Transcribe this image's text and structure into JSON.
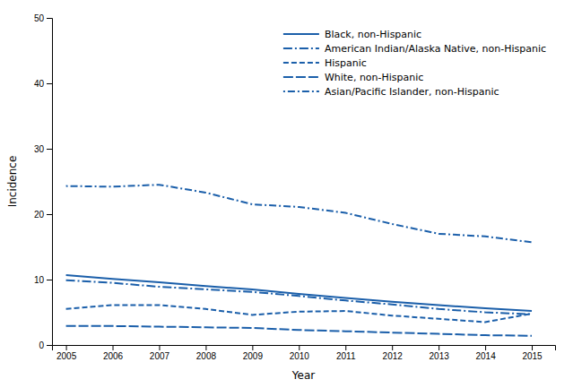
{
  "chart_data": {
    "type": "line",
    "xlabel": "Year",
    "ylabel": "Incidence",
    "x": [
      2005,
      2006,
      2007,
      2008,
      2009,
      2010,
      2011,
      2012,
      2013,
      2014,
      2015
    ],
    "xlim": [
      2004.7,
      2015.5
    ],
    "xticks": [
      2005,
      2006,
      2007,
      2008,
      2009,
      2010,
      2011,
      2012,
      2013,
      2014,
      2015
    ],
    "ylim": [
      0,
      50
    ],
    "yticks": [
      0,
      10,
      20,
      30,
      40,
      50
    ],
    "grid": false,
    "legend": "upper right",
    "series": [
      {
        "name": "Black, non-Hispanic",
        "color": "#1b5faa",
        "line_style": "solid",
        "values": [
          10.7,
          10.1,
          9.6,
          9.0,
          8.5,
          7.8,
          7.2,
          6.6,
          6.1,
          5.6,
          5.2
        ]
      },
      {
        "name": "American Indian/Alaska Native, non-Hispanic",
        "color": "#1b5faa",
        "line_style": "dashdot",
        "values": [
          9.9,
          9.5,
          8.9,
          8.5,
          8.1,
          7.5,
          6.8,
          6.2,
          5.5,
          5.0,
          4.7
        ]
      },
      {
        "name": "Hispanic",
        "color": "#1b5faa",
        "line_style": "dashed",
        "values": [
          5.5,
          6.1,
          6.1,
          5.5,
          4.6,
          5.1,
          5.2,
          4.5,
          4.0,
          3.5,
          4.8
        ]
      },
      {
        "name": "White, non-Hispanic",
        "color": "#1b5faa",
        "line_style": "longdash",
        "values": [
          2.9,
          2.9,
          2.8,
          2.7,
          2.6,
          2.3,
          2.1,
          1.9,
          1.7,
          1.5,
          1.4
        ]
      },
      {
        "name": "Asian/Pacific Islander, non-Hispanic",
        "color": "#1b5faa",
        "line_style": "dotdash",
        "values": [
          24.3,
          24.2,
          24.5,
          23.3,
          21.5,
          21.1,
          20.2,
          18.5,
          17.0,
          16.6,
          15.7
        ]
      }
    ]
  }
}
